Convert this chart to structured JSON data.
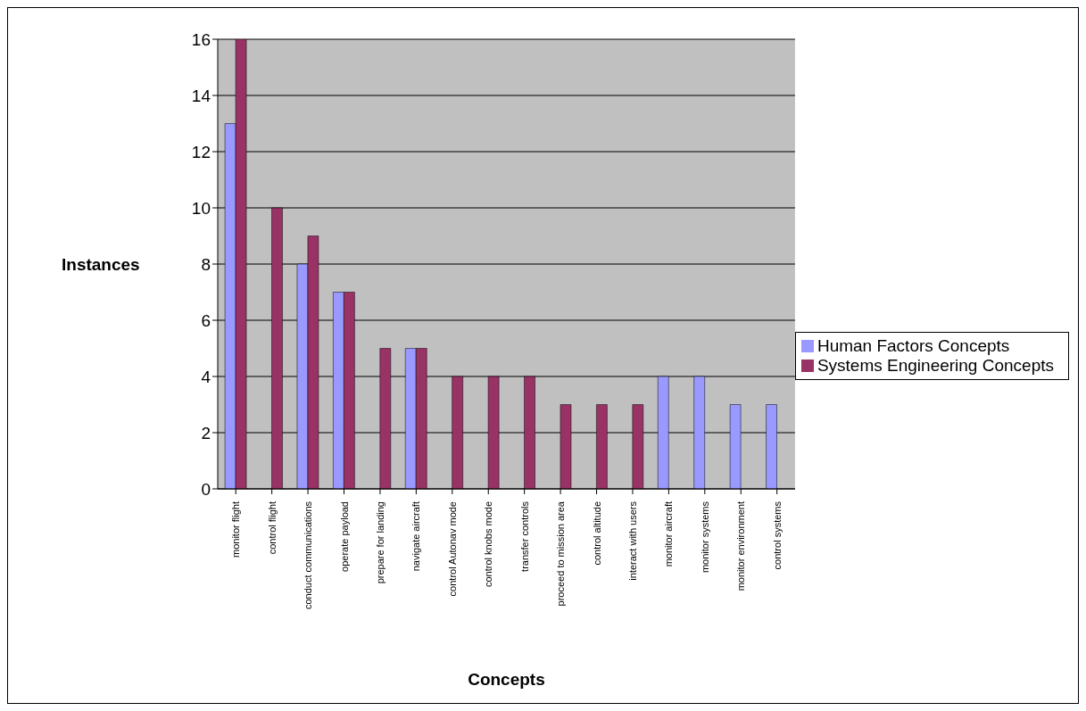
{
  "chart_data": {
    "type": "bar",
    "xlabel": "Concepts",
    "ylabel": "Instances",
    "categories": [
      "monitor flight",
      "control flight",
      "conduct communications",
      "operate payload",
      "prepare for landing",
      "navigate aircraft",
      "control Autonav mode",
      "control knobs mode",
      "transfer controls",
      "proceed to mission area",
      "control altitude",
      "interact with users",
      "monitor aircraft",
      "monitor systems",
      "monitor environment",
      "control systems"
    ],
    "series": [
      {
        "name": "Human Factors Concepts",
        "color": "#9999ff",
        "values": [
          13,
          0,
          8,
          7,
          0,
          5,
          0,
          0,
          0,
          0,
          0,
          0,
          4,
          4,
          3,
          3
        ]
      },
      {
        "name": "Systems Engineering Concepts",
        "color": "#993366",
        "values": [
          16,
          10,
          9,
          7,
          5,
          5,
          4,
          4,
          4,
          3,
          3,
          3,
          0,
          0,
          0,
          0
        ]
      }
    ],
    "ylim": [
      0,
      16
    ],
    "yticks": [
      0,
      2,
      4,
      6,
      8,
      10,
      12,
      14,
      16
    ],
    "grid": "y",
    "legend": "right"
  }
}
